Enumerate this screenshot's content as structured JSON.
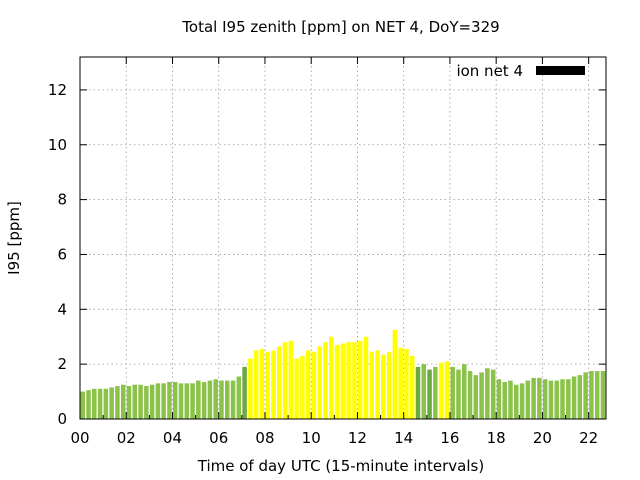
{
  "chart_data": {
    "type": "bar",
    "title": "Total I95 zenith [ppm] on NET 4, DoY=329",
    "xlabel": "Time of day UTC (15-minute intervals)",
    "ylabel": "I95 [ppm]",
    "xlim": [
      0,
      22.75
    ],
    "ylim": [
      0,
      13.2
    ],
    "xticks": [
      0,
      2,
      4,
      6,
      8,
      10,
      12,
      14,
      16,
      18,
      20,
      22
    ],
    "xtick_labels": [
      "00",
      "02",
      "04",
      "06",
      "08",
      "10",
      "12",
      "14",
      "16",
      "18",
      "20",
      "22"
    ],
    "yticks": [
      0,
      2,
      4,
      6,
      8,
      10,
      12
    ],
    "ytick_labels": [
      "0",
      "2",
      "4",
      "6",
      "8",
      "10",
      "12"
    ],
    "grid": true,
    "legend": {
      "label": "ion net 4",
      "placement": "top-right"
    },
    "series": [
      {
        "name": "ion net 4",
        "interval_hours": 0.25,
        "start_hour": 0,
        "values": [
          1.0,
          1.05,
          1.1,
          1.1,
          1.1,
          1.15,
          1.2,
          1.25,
          1.2,
          1.25,
          1.25,
          1.2,
          1.25,
          1.3,
          1.3,
          1.35,
          1.35,
          1.3,
          1.3,
          1.3,
          1.4,
          1.35,
          1.4,
          1.45,
          1.4,
          1.4,
          1.4,
          1.55,
          1.9,
          2.2,
          2.5,
          2.55,
          2.45,
          2.5,
          2.65,
          2.8,
          2.85,
          2.2,
          2.3,
          2.5,
          2.45,
          2.65,
          2.8,
          3.0,
          2.7,
          2.75,
          2.8,
          2.8,
          2.85,
          3.0,
          2.45,
          2.5,
          2.35,
          2.45,
          3.25,
          2.6,
          2.55,
          2.3,
          1.9,
          2.0,
          1.8,
          1.9,
          2.05,
          2.1,
          1.9,
          1.8,
          2.0,
          1.75,
          1.6,
          1.7,
          1.85,
          1.8,
          1.45,
          1.35,
          1.4,
          1.25,
          1.3,
          1.4,
          1.5,
          1.5,
          1.45,
          1.4,
          1.4,
          1.45,
          1.45,
          1.55,
          1.6,
          1.7,
          1.75,
          1.75,
          1.75
        ],
        "colors": {
          "low": "#8bc34a",
          "mid": "#ffff00",
          "dark": "#6aa842"
        },
        "color_classes": [
          "low",
          "low",
          "low",
          "low",
          "low",
          "low",
          "low",
          "low",
          "low",
          "low",
          "low",
          "low",
          "low",
          "low",
          "low",
          "low",
          "low",
          "low",
          "low",
          "low",
          "low",
          "low",
          "low",
          "low",
          "low",
          "low",
          "low",
          "low",
          "dark",
          "mid",
          "mid",
          "mid",
          "mid",
          "mid",
          "mid",
          "mid",
          "mid",
          "mid",
          "mid",
          "mid",
          "mid",
          "mid",
          "mid",
          "mid",
          "mid",
          "mid",
          "mid",
          "mid",
          "mid",
          "mid",
          "mid",
          "mid",
          "mid",
          "mid",
          "mid",
          "mid",
          "mid",
          "mid",
          "dark",
          "low",
          "dark",
          "low",
          "mid",
          "mid",
          "low",
          "low",
          "low",
          "low",
          "low",
          "low",
          "low",
          "low",
          "low",
          "low",
          "low",
          "low",
          "low",
          "low",
          "low",
          "low",
          "low",
          "low",
          "low",
          "low",
          "low",
          "low",
          "low",
          "low",
          "low",
          "low",
          "low"
        ]
      }
    ]
  },
  "legend_color": "#000000"
}
